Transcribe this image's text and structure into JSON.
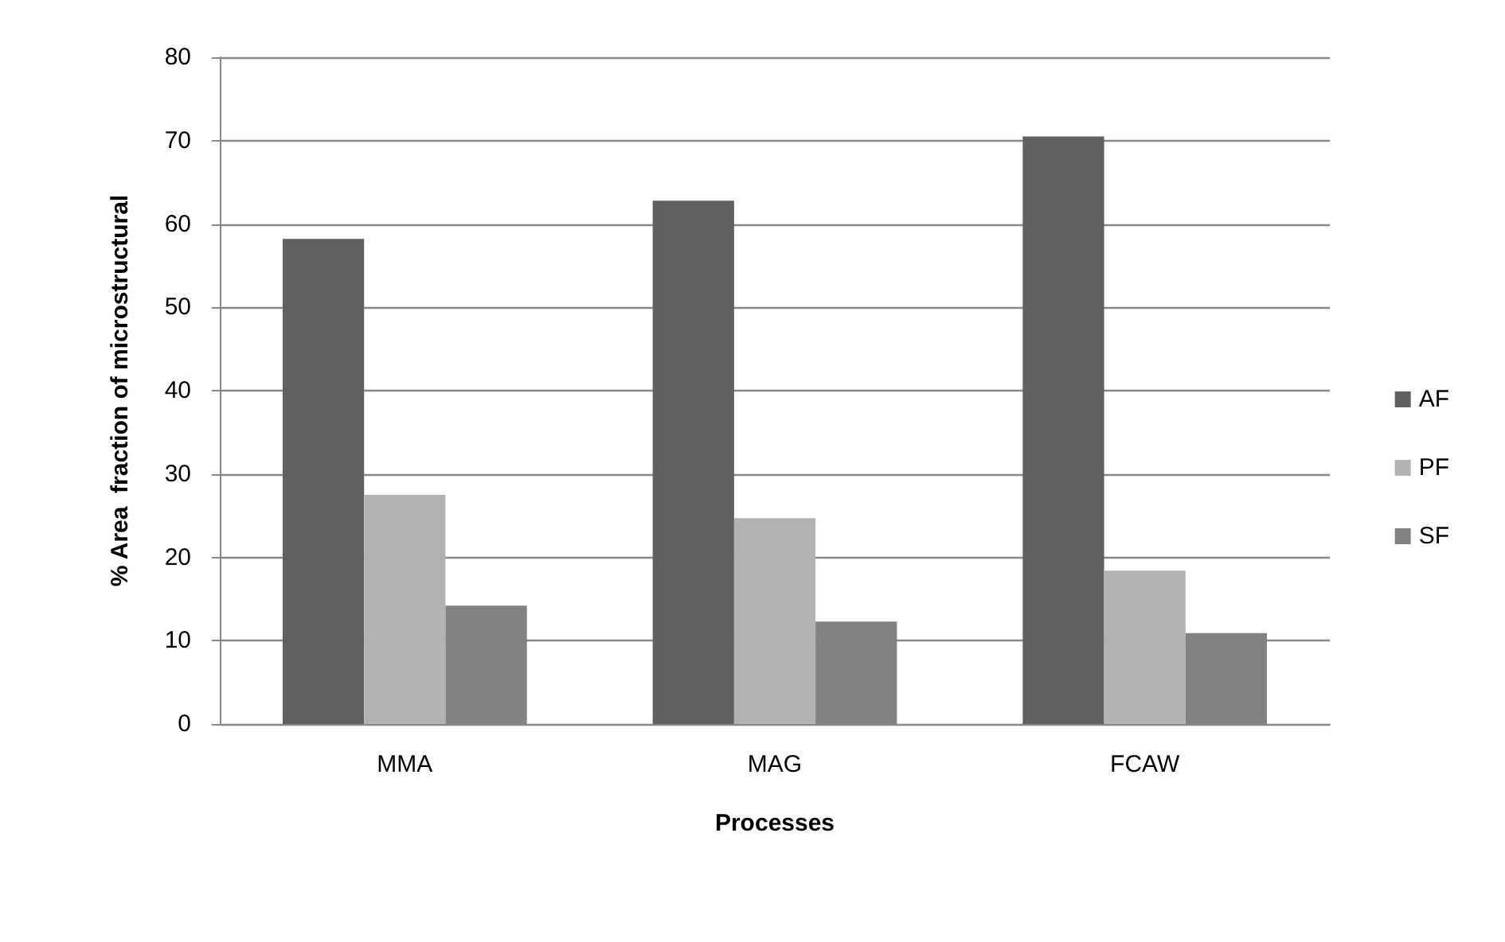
{
  "chart_data": {
    "type": "bar",
    "xlabel": "Processes",
    "ylabel": "% Area  fraction of microstructural",
    "categories": [
      "MMA",
      "MAG",
      "FCAW"
    ],
    "series": [
      {
        "name": "AF",
        "color": "#606060",
        "values": [
          58.2,
          62.8,
          70.5
        ]
      },
      {
        "name": "PF",
        "color": "#b2b2b2",
        "values": [
          27.5,
          24.7,
          18.4
        ]
      },
      {
        "name": "SF",
        "color": "#828282",
        "values": [
          14.2,
          12.3,
          10.9
        ]
      }
    ],
    "ylim": [
      0,
      80
    ],
    "yticks": [
      0,
      10,
      20,
      30,
      40,
      50,
      60,
      70,
      80
    ],
    "grid": "y",
    "legend": "right"
  }
}
